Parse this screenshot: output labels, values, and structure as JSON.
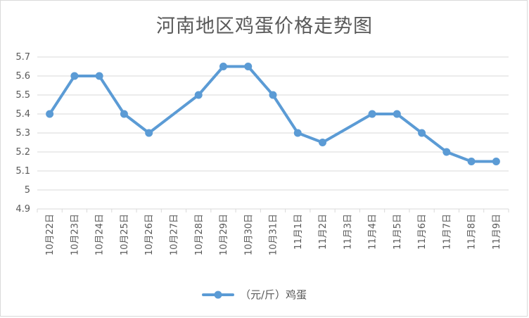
{
  "chart_data": {
    "type": "line",
    "title": "河南地区鸡蛋价格走势图",
    "categories": [
      "10月22日",
      "10月23日",
      "10月24日",
      "10月25日",
      "10月26日",
      "10月27日",
      "10月28日",
      "10月29日",
      "10月30日",
      "10月31日",
      "11月1日",
      "11月2日",
      "11月3日",
      "11月4日",
      "11月5日",
      "11月6日",
      "11月7日",
      "11月8日",
      "11月9日"
    ],
    "series": [
      {
        "name": "（元/斤）鸡蛋",
        "values": [
          5.4,
          5.6,
          5.6,
          5.4,
          5.3,
          null,
          5.5,
          5.65,
          5.65,
          5.5,
          5.3,
          5.25,
          null,
          5.4,
          5.4,
          5.3,
          5.2,
          5.15,
          5.15
        ],
        "color": "#5b9bd5"
      }
    ],
    "ylim": [
      4.9,
      5.7
    ],
    "yticks": [
      "4.9",
      "5",
      "5.1",
      "5.2",
      "5.3",
      "5.4",
      "5.5",
      "5.6",
      "5.7"
    ],
    "grid": true,
    "legend": "bottom",
    "xlabel": "",
    "ylabel": ""
  }
}
